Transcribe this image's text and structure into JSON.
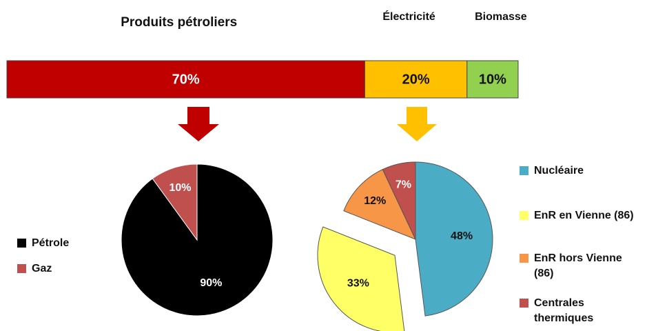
{
  "chart_data": [
    {
      "type": "bar",
      "series": [
        {
          "name": "Produits pétroliers",
          "color": "#c00000",
          "values": [
            70
          ],
          "value_labels": [
            "70%"
          ]
        },
        {
          "name": "Électricité",
          "color": "#ffc000",
          "values": [
            20
          ],
          "value_labels": [
            "20%"
          ]
        },
        {
          "name": "Biomasse",
          "color": "#92d050",
          "values": [
            10
          ],
          "value_labels": [
            "10%"
          ]
        }
      ]
    },
    {
      "type": "pie",
      "categories": [
        "Pétrole",
        "Gaz"
      ],
      "values": [
        90,
        10
      ],
      "value_labels": [
        "90%",
        "10%"
      ],
      "colors": [
        "#000000",
        "#c0504d"
      ]
    },
    {
      "type": "pie",
      "categories": [
        "Nucléaire",
        "EnR en Vienne (86)",
        "EnR hors Vienne (86)",
        "Centrales thermiques"
      ],
      "values": [
        48,
        33,
        12,
        7
      ],
      "value_labels": [
        "48%",
        "33%",
        "12%",
        "7%"
      ],
      "colors": [
        "#4bacc6",
        "#ffff66",
        "#f79646",
        "#c0504d"
      ]
    }
  ]
}
